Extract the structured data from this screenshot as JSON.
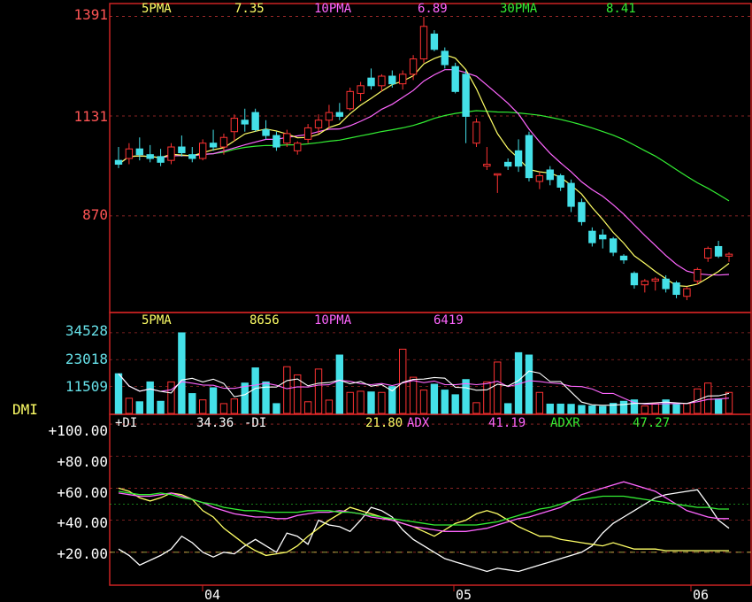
{
  "price_panel": {
    "ma_legend": [
      {
        "label": "5PMA",
        "value": "7.35",
        "color": "#ffff66"
      },
      {
        "label": "10PMA",
        "value": "6.89",
        "color": "#ff66ff"
      },
      {
        "label": "30PMA",
        "value": "8.41",
        "color": "#33ee33"
      }
    ],
    "y_ticks": [
      "1391",
      "1131",
      "870"
    ]
  },
  "volume_panel": {
    "ma_legend": [
      {
        "label": "5PMA",
        "value": "8656",
        "color": "#ffff66"
      },
      {
        "label": "10PMA",
        "value": "6419",
        "color": "#ff66ff"
      }
    ],
    "y_ticks": [
      "34528",
      "23018",
      "11509"
    ]
  },
  "dmi_panel": {
    "title": "DMI",
    "legend": [
      {
        "label": "+DI",
        "value": "34.36",
        "color": "#ffffff"
      },
      {
        "label": "-DI",
        "value": "21.80",
        "color": "#ffff66"
      },
      {
        "label": "ADX",
        "value": "41.19",
        "color": "#ff66ff"
      },
      {
        "label": "ADXR",
        "value": "47.27",
        "color": "#33ee33"
      }
    ],
    "y_ticks": [
      "+100.00",
      "+80.00",
      "+60.00",
      "+40.00",
      "+20.00"
    ]
  },
  "x_ticks": [
    "04",
    "05",
    "06"
  ],
  "colors": {
    "up": "#ff3333",
    "down": "#44e0e8",
    "frame": "#cc2222",
    "grid": "#ff4444"
  },
  "chart_data": [
    {
      "type": "candlestick",
      "title": "",
      "y_ticks": [
        870,
        1131,
        1391
      ],
      "ylim": [
        620,
        1420
      ],
      "ohlc": [
        [
          1015,
          1050,
          995,
          1005
        ],
        [
          1020,
          1060,
          1005,
          1045
        ],
        [
          1045,
          1075,
          1015,
          1030
        ],
        [
          1030,
          1055,
          1010,
          1020
        ],
        [
          1025,
          1045,
          1000,
          1010
        ],
        [
          1015,
          1060,
          1005,
          1050
        ],
        [
          1050,
          1080,
          1025,
          1035
        ],
        [
          1030,
          1050,
          1010,
          1020
        ],
        [
          1020,
          1070,
          1015,
          1060
        ],
        [
          1060,
          1095,
          1040,
          1050
        ],
        [
          1050,
          1085,
          1030,
          1075
        ],
        [
          1090,
          1135,
          1065,
          1125
        ],
        [
          1120,
          1150,
          1090,
          1110
        ],
        [
          1140,
          1150,
          1090,
          1095
        ],
        [
          1095,
          1120,
          1070,
          1080
        ],
        [
          1080,
          1090,
          1040,
          1050
        ],
        [
          1060,
          1095,
          1050,
          1085
        ],
        [
          1040,
          1065,
          1030,
          1060
        ],
        [
          1070,
          1110,
          1060,
          1100
        ],
        [
          1100,
          1135,
          1085,
          1120
        ],
        [
          1120,
          1160,
          1100,
          1140
        ],
        [
          1140,
          1165,
          1120,
          1130
        ],
        [
          1150,
          1205,
          1145,
          1195
        ],
        [
          1190,
          1220,
          1170,
          1210
        ],
        [
          1230,
          1255,
          1200,
          1210
        ],
        [
          1210,
          1240,
          1195,
          1235
        ],
        [
          1235,
          1250,
          1205,
          1215
        ],
        [
          1215,
          1250,
          1200,
          1240
        ],
        [
          1240,
          1290,
          1225,
          1280
        ],
        [
          1280,
          1390,
          1270,
          1365
        ],
        [
          1345,
          1355,
          1300,
          1305
        ],
        [
          1300,
          1310,
          1255,
          1265
        ],
        [
          1260,
          1270,
          1190,
          1195
        ],
        [
          1240,
          1250,
          1060,
          1130
        ],
        [
          1060,
          1125,
          1050,
          1115
        ],
        [
          1000,
          1050,
          990,
          1005
        ],
        [
          980,
          980,
          930,
          980
        ],
        [
          1010,
          1020,
          990,
          1000
        ],
        [
          1040,
          1070,
          985,
          1000
        ],
        [
          1080,
          1090,
          960,
          970
        ],
        [
          960,
          985,
          940,
          975
        ],
        [
          990,
          1000,
          950,
          965
        ],
        [
          975,
          980,
          935,
          945
        ],
        [
          955,
          965,
          880,
          895
        ],
        [
          905,
          915,
          845,
          855
        ],
        [
          830,
          840,
          790,
          800
        ],
        [
          820,
          835,
          785,
          810
        ],
        [
          810,
          815,
          765,
          775
        ],
        [
          765,
          770,
          745,
          755
        ],
        [
          720,
          725,
          680,
          690
        ],
        [
          690,
          705,
          670,
          700
        ],
        [
          700,
          710,
          675,
          705
        ],
        [
          705,
          715,
          670,
          680
        ],
        [
          695,
          700,
          655,
          665
        ],
        [
          660,
          685,
          650,
          680
        ],
        [
          700,
          735,
          690,
          730
        ],
        [
          760,
          790,
          750,
          785
        ],
        [
          790,
          805,
          760,
          765
        ],
        [
          765,
          775,
          750,
          770
        ]
      ]
    },
    {
      "type": "bar",
      "title": "",
      "y_ticks": [
        11509,
        23018,
        34528
      ],
      "ylim": [
        0,
        36000
      ],
      "values": [
        17000,
        6500,
        5000,
        13500,
        5200,
        13500,
        34500,
        8500,
        5800,
        11000,
        4200,
        6200,
        13000,
        19500,
        13500,
        4200,
        20000,
        16500,
        5000,
        19000,
        5700,
        25000,
        9000,
        9500,
        9200,
        9000,
        11500,
        27500,
        15500,
        10000,
        12500,
        10000,
        8000,
        14500,
        4600,
        13500,
        22000,
        4200,
        26000,
        25000,
        9000,
        4000,
        4000,
        3900,
        3400,
        3200,
        3000,
        4300,
        5200,
        5800,
        3200,
        4200,
        5800,
        3800,
        4200,
        10500,
        13000,
        6200,
        9000
      ]
    },
    {
      "type": "line",
      "title": "DMI",
      "y_ticks": [
        20,
        40,
        60,
        80,
        100
      ],
      "ylim": [
        0,
        105
      ],
      "series": [
        {
          "name": "+DI",
          "values": [
            22,
            18,
            12,
            15,
            18,
            22,
            30,
            26,
            20,
            17,
            20,
            19,
            24,
            28,
            24,
            20,
            32,
            30,
            25,
            40,
            37,
            36,
            33,
            40,
            48,
            46,
            42,
            34,
            28,
            24,
            20,
            16,
            14,
            12,
            10,
            8,
            10,
            9,
            8,
            10,
            12,
            14,
            16,
            18,
            20,
            24,
            32,
            38,
            42,
            46,
            50,
            54,
            56,
            57,
            58,
            59,
            50,
            40,
            35
          ]
        },
        {
          "name": "-DI",
          "values": [
            60,
            58,
            54,
            52,
            54,
            57,
            56,
            53,
            46,
            42,
            35,
            30,
            25,
            21,
            18,
            19,
            20,
            24,
            30,
            35,
            40,
            44,
            48,
            46,
            44,
            42,
            40,
            38,
            36,
            33,
            30,
            34,
            38,
            40,
            44,
            46,
            44,
            40,
            36,
            33,
            30,
            30,
            28,
            27,
            26,
            25,
            24,
            26,
            24,
            22,
            22,
            22,
            21,
            21,
            21,
            21,
            21,
            21,
            21
          ]
        },
        {
          "name": "ADX",
          "values": [
            57,
            56,
            55,
            55,
            56,
            57,
            55,
            53,
            51,
            48,
            46,
            44,
            43,
            42,
            42,
            41,
            41,
            43,
            44,
            45,
            45,
            46,
            45,
            44,
            42,
            41,
            40,
            38,
            36,
            35,
            34,
            33,
            33,
            33,
            34,
            35,
            37,
            39,
            41,
            42,
            44,
            46,
            48,
            52,
            56,
            58,
            60,
            62,
            64,
            62,
            60,
            58,
            54,
            50,
            46,
            44,
            42,
            41,
            41
          ]
        },
        {
          "name": "ADXR",
          "values": [
            58,
            57,
            56,
            56,
            57,
            56,
            54,
            53,
            51,
            50,
            48,
            47,
            46,
            46,
            45,
            45,
            45,
            45,
            46,
            46,
            46,
            45,
            45,
            44,
            43,
            42,
            41,
            40,
            39,
            38,
            37,
            37,
            37,
            37,
            37,
            38,
            39,
            41,
            43,
            45,
            47,
            48,
            50,
            52,
            53,
            54,
            55,
            55,
            55,
            54,
            53,
            52,
            51,
            50,
            49,
            48,
            48,
            47,
            47
          ]
        }
      ]
    }
  ]
}
